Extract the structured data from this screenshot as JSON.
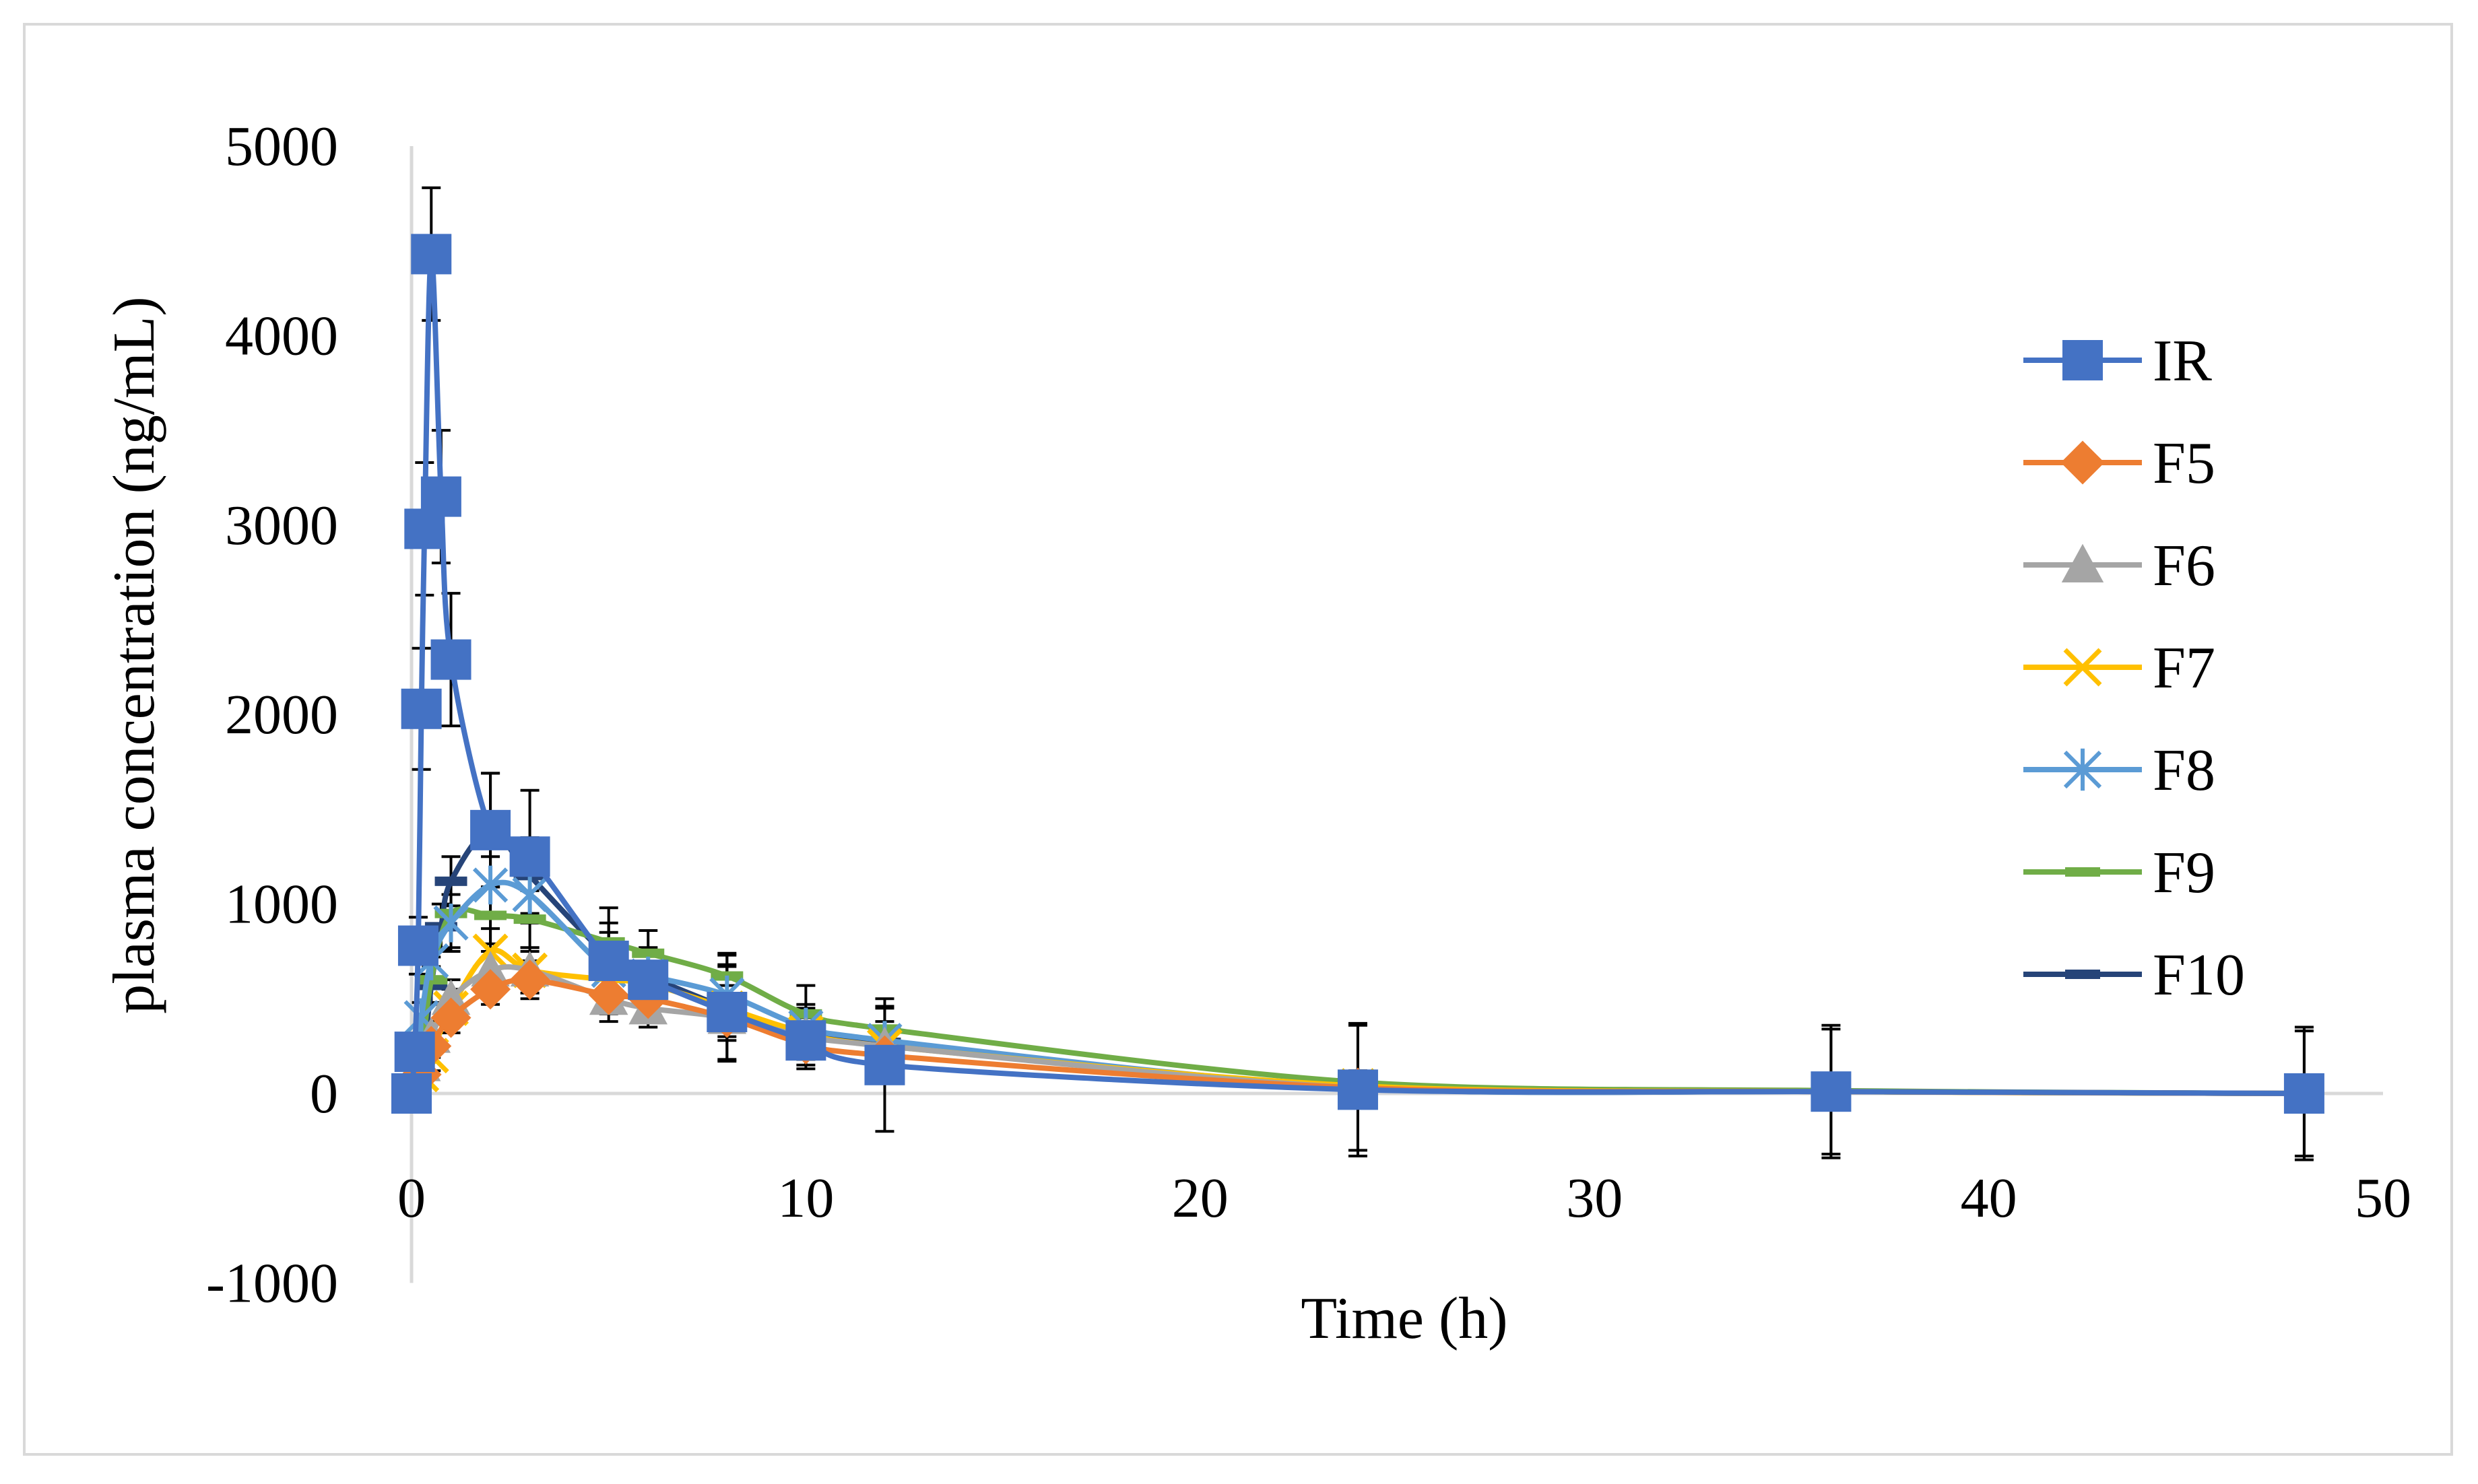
{
  "chart_data": {
    "type": "line",
    "title": "",
    "xlabel": "Time (h)",
    "ylabel": "plasma concentration (ng/mL)",
    "xlim": [
      0,
      50
    ],
    "ylim": [
      -1000,
      5000
    ],
    "x_ticks": [
      0,
      10,
      20,
      30,
      40,
      50
    ],
    "y_ticks": [
      -1000,
      0,
      1000,
      2000,
      3000,
      4000,
      5000
    ],
    "grid": false,
    "legend_position": "right",
    "series": [
      {
        "name": "IR",
        "color": "#4472C4",
        "marker": "square",
        "points": [
          [
            0,
            0
          ],
          [
            0.08,
            220
          ],
          [
            0.17,
            780
          ],
          [
            0.25,
            2030
          ],
          [
            0.33,
            2980
          ],
          [
            0.5,
            4430
          ],
          [
            0.75,
            3150
          ],
          [
            1,
            2290
          ],
          [
            2,
            1390
          ],
          [
            3,
            1250
          ],
          [
            5,
            700
          ],
          [
            6,
            600
          ],
          [
            8,
            430
          ],
          [
            10,
            280
          ],
          [
            12,
            150
          ],
          [
            24,
            20
          ],
          [
            36,
            10
          ],
          [
            48,
            0
          ]
        ],
        "err": [
          0,
          50,
          150,
          320,
          350,
          350,
          350,
          350,
          300,
          350,
          150,
          150,
          250,
          150,
          350,
          350,
          350,
          350
        ]
      },
      {
        "name": "F5",
        "color": "#ED7D31",
        "marker": "diamond",
        "points": [
          [
            0,
            0
          ],
          [
            0.25,
            100
          ],
          [
            0.5,
            250
          ],
          [
            1,
            400
          ],
          [
            2,
            550
          ],
          [
            3,
            600
          ],
          [
            5,
            520
          ],
          [
            6,
            500
          ],
          [
            8,
            400
          ],
          [
            10,
            260
          ],
          [
            12,
            200
          ],
          [
            24,
            30
          ],
          [
            36,
            10
          ],
          [
            48,
            0
          ]
        ],
        "err": [
          0,
          30,
          60,
          80,
          80,
          100,
          100,
          100,
          100,
          80,
          80,
          60,
          60,
          60
        ]
      },
      {
        "name": "F6",
        "color": "#A5A5A5",
        "marker": "triangle",
        "points": [
          [
            0,
            0
          ],
          [
            0.25,
            150
          ],
          [
            0.5,
            300
          ],
          [
            1,
            500
          ],
          [
            2,
            650
          ],
          [
            3,
            650
          ],
          [
            5,
            500
          ],
          [
            6,
            450
          ],
          [
            8,
            400
          ],
          [
            10,
            300
          ],
          [
            12,
            250
          ],
          [
            24,
            30
          ],
          [
            36,
            10
          ],
          [
            48,
            0
          ]
        ],
        "err": [
          0,
          40,
          80,
          100,
          100,
          100,
          120,
          100,
          120,
          80,
          80,
          60,
          60,
          60
        ]
      },
      {
        "name": "F7",
        "color": "#FFC000",
        "marker": "x",
        "points": [
          [
            0,
            0
          ],
          [
            0.25,
            100
          ],
          [
            0.5,
            200
          ],
          [
            1,
            450
          ],
          [
            2,
            750
          ],
          [
            3,
            650
          ],
          [
            5,
            600
          ],
          [
            6,
            580
          ],
          [
            8,
            450
          ],
          [
            10,
            320
          ],
          [
            12,
            250
          ],
          [
            24,
            40
          ],
          [
            36,
            10
          ],
          [
            48,
            0
          ]
        ],
        "err": [
          0,
          40,
          80,
          100,
          120,
          120,
          120,
          100,
          120,
          80,
          80,
          60,
          60,
          60
        ]
      },
      {
        "name": "F8",
        "color": "#5B9BD5",
        "marker": "asterisk",
        "points": [
          [
            0,
            0
          ],
          [
            0.25,
            400
          ],
          [
            0.5,
            700
          ],
          [
            1,
            900
          ],
          [
            2,
            1100
          ],
          [
            3,
            1050
          ],
          [
            5,
            650
          ],
          [
            6,
            620
          ],
          [
            8,
            520
          ],
          [
            10,
            350
          ],
          [
            12,
            280
          ],
          [
            24,
            30
          ],
          [
            36,
            10
          ],
          [
            48,
            0
          ]
        ],
        "err": [
          0,
          80,
          120,
          150,
          150,
          150,
          150,
          150,
          150,
          120,
          100,
          80,
          60,
          60
        ]
      },
      {
        "name": "F9",
        "color": "#70AD47",
        "marker": "dash",
        "points": [
          [
            0,
            0
          ],
          [
            0.25,
            200
          ],
          [
            0.5,
            600
          ],
          [
            1,
            950
          ],
          [
            2,
            940
          ],
          [
            3,
            920
          ],
          [
            5,
            800
          ],
          [
            6,
            740
          ],
          [
            8,
            620
          ],
          [
            10,
            420
          ],
          [
            12,
            340
          ],
          [
            24,
            60
          ],
          [
            36,
            15
          ],
          [
            48,
            0
          ]
        ],
        "err": [
          0,
          60,
          120,
          180,
          150,
          150,
          180,
          120,
          120,
          150,
          120,
          60,
          60,
          60
        ]
      },
      {
        "name": "F10",
        "color": "#264478",
        "marker": "dash",
        "points": [
          [
            0,
            0
          ],
          [
            0.25,
            100
          ],
          [
            0.5,
            570
          ],
          [
            0.75,
            880
          ],
          [
            1,
            1120
          ],
          [
            2,
            1390
          ],
          [
            3,
            1150
          ],
          [
            5,
            720
          ],
          [
            6,
            620
          ],
          [
            8,
            450
          ],
          [
            10,
            300
          ],
          [
            12,
            270
          ],
          [
            24,
            30
          ],
          [
            36,
            10
          ],
          [
            48,
            0
          ]
        ],
        "err": [
          0,
          40,
          100,
          120,
          130,
          300,
          200,
          180,
          150,
          280,
          150,
          180,
          330,
          330,
          330
        ]
      }
    ]
  }
}
